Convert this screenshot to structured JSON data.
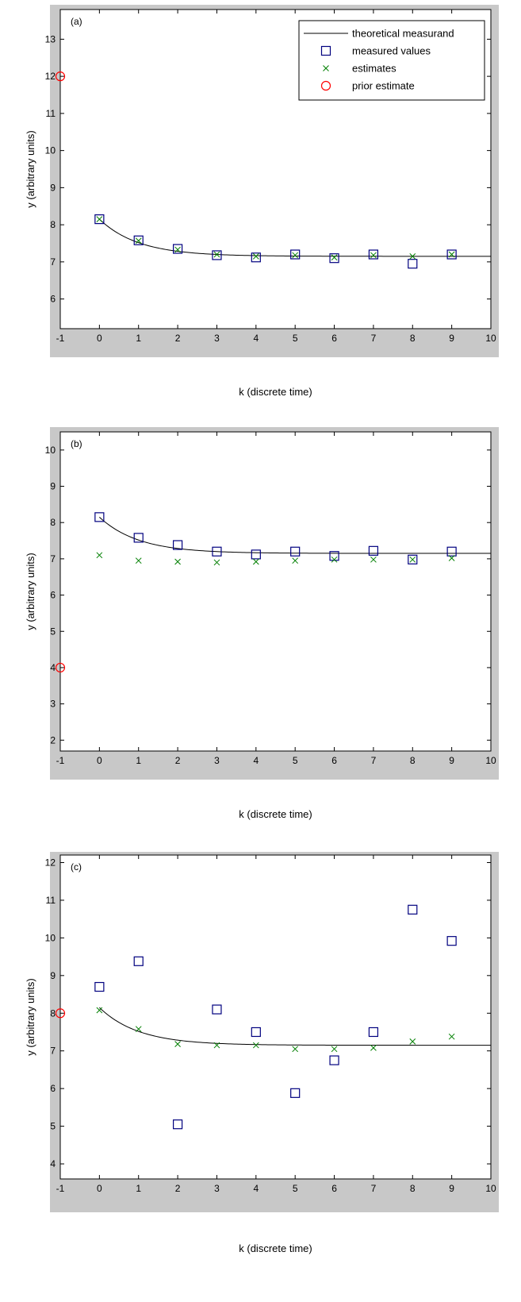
{
  "colors": {
    "frame_bg": "#c8c8c8",
    "axes_bg": "#ffffff",
    "theoretical": "#000000",
    "measured": "#00007f",
    "estimates": "#007f00",
    "prior": "#ff0000"
  },
  "legend": {
    "theoretical_label": "theoretical measurand",
    "measured_label": "measured values",
    "estimates_label": "estimates",
    "prior_label": "prior estimate",
    "placement": "top-right",
    "shown_in_panel": "a"
  },
  "chart_data": [
    {
      "type": "line",
      "panel_label": "(a)",
      "xlabel": "k (discrete time)",
      "ylabel": "y (arbitrary units)",
      "xlim": [
        -1,
        10
      ],
      "ylim": [
        5.2,
        13.8
      ],
      "xticks": [
        -1,
        0,
        1,
        2,
        3,
        4,
        5,
        6,
        7,
        8,
        9,
        10
      ],
      "yticks": [
        6,
        7,
        8,
        9,
        10,
        11,
        12,
        13
      ],
      "grid": false,
      "theoretical": {
        "asymptote": 7.15,
        "amplitude": 1.0,
        "rate": 1.0,
        "x_start": 0,
        "x_end": 10
      },
      "series": [
        {
          "name": "measured values",
          "marker": "square",
          "x": [
            0,
            1,
            2,
            3,
            4,
            5,
            6,
            7,
            8,
            9
          ],
          "y": [
            8.15,
            7.58,
            7.35,
            7.18,
            7.12,
            7.2,
            7.1,
            7.2,
            6.95,
            7.2
          ]
        },
        {
          "name": "estimates",
          "marker": "x",
          "x": [
            0,
            1,
            2,
            3,
            4,
            5,
            6,
            7,
            8,
            9
          ],
          "y": [
            8.15,
            7.57,
            7.33,
            7.2,
            7.15,
            7.18,
            7.12,
            7.18,
            7.15,
            7.2
          ]
        },
        {
          "name": "prior estimate",
          "marker": "circle",
          "x": [
            -1
          ],
          "y": [
            12
          ]
        }
      ]
    },
    {
      "type": "line",
      "panel_label": "(b)",
      "xlabel": "k (discrete time)",
      "ylabel": "y (arbitrary units)",
      "xlim": [
        -1,
        10
      ],
      "ylim": [
        1.7,
        10.5
      ],
      "xticks": [
        -1,
        0,
        1,
        2,
        3,
        4,
        5,
        6,
        7,
        8,
        9,
        10
      ],
      "yticks": [
        2,
        3,
        4,
        5,
        6,
        7,
        8,
        9,
        10
      ],
      "grid": false,
      "theoretical": {
        "asymptote": 7.15,
        "amplitude": 1.0,
        "rate": 1.0,
        "x_start": 0,
        "x_end": 10
      },
      "series": [
        {
          "name": "measured values",
          "marker": "square",
          "x": [
            0,
            1,
            2,
            3,
            4,
            5,
            6,
            7,
            8,
            9
          ],
          "y": [
            8.15,
            7.58,
            7.38,
            7.2,
            7.12,
            7.2,
            7.08,
            7.22,
            6.98,
            7.2
          ]
        },
        {
          "name": "estimates",
          "marker": "x",
          "x": [
            0,
            1,
            2,
            3,
            4,
            5,
            6,
            7,
            8,
            9
          ],
          "y": [
            7.1,
            6.95,
            6.92,
            6.9,
            6.92,
            6.95,
            6.98,
            6.98,
            6.98,
            7.02
          ]
        },
        {
          "name": "prior estimate",
          "marker": "circle",
          "x": [
            -1
          ],
          "y": [
            4
          ]
        }
      ]
    },
    {
      "type": "line",
      "panel_label": "(c)",
      "xlabel": "k (discrete time)",
      "ylabel": "y (arbitrary units)",
      "xlim": [
        -1,
        10
      ],
      "ylim": [
        3.6,
        12.2
      ],
      "xticks": [
        -1,
        0,
        1,
        2,
        3,
        4,
        5,
        6,
        7,
        8,
        9,
        10
      ],
      "yticks": [
        4,
        5,
        6,
        7,
        8,
        9,
        10,
        11,
        12
      ],
      "grid": false,
      "theoretical": {
        "asymptote": 7.15,
        "amplitude": 1.0,
        "rate": 1.0,
        "x_start": 0,
        "x_end": 10
      },
      "series": [
        {
          "name": "measured values",
          "marker": "square",
          "x": [
            0,
            1,
            2,
            3,
            4,
            5,
            6,
            7,
            8,
            9
          ],
          "y": [
            8.7,
            9.38,
            5.05,
            8.1,
            7.5,
            5.88,
            6.75,
            7.5,
            10.75,
            9.92
          ]
        },
        {
          "name": "estimates",
          "marker": "x",
          "x": [
            0,
            1,
            2,
            3,
            4,
            5,
            6,
            7,
            8,
            9
          ],
          "y": [
            8.08,
            7.58,
            7.18,
            7.15,
            7.15,
            7.05,
            7.05,
            7.08,
            7.25,
            7.38
          ]
        },
        {
          "name": "prior estimate",
          "marker": "circle",
          "x": [
            -1
          ],
          "y": [
            8
          ]
        }
      ]
    }
  ]
}
